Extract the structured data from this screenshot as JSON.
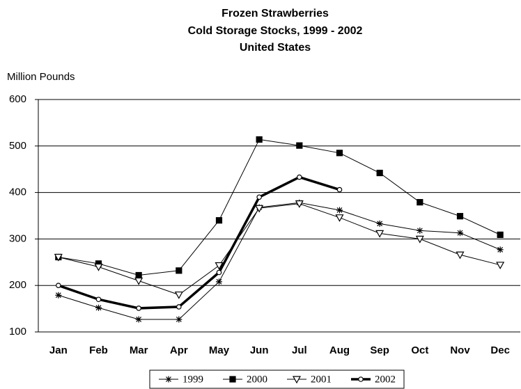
{
  "chart_data": {
    "type": "line",
    "title": [
      "Frozen Strawberries",
      "Cold Storage Stocks, 1999 - 2002",
      "United States"
    ],
    "y_label": "Million Pounds",
    "categories": [
      "Jan",
      "Feb",
      "Mar",
      "Apr",
      "May",
      "Jun",
      "Jul",
      "Aug",
      "Sep",
      "Oct",
      "Nov",
      "Dec"
    ],
    "series": [
      {
        "name": "1999",
        "color": "#000000",
        "marker": "asterisk",
        "line_width": 1,
        "values": [
          179,
          152,
          127,
          127,
          208,
          368,
          378,
          362,
          333,
          318,
          313,
          277
        ]
      },
      {
        "name": "2000",
        "color": "#000000",
        "marker": "square",
        "line_width": 1,
        "values": [
          261,
          247,
          222,
          232,
          340,
          514,
          501,
          485,
          442,
          379,
          349,
          309
        ]
      },
      {
        "name": "2001",
        "color": "#000000",
        "marker": "triangle-down",
        "line_width": 1,
        "values": [
          261,
          240,
          210,
          180,
          243,
          366,
          376,
          346,
          312,
          300,
          266,
          244
        ]
      },
      {
        "name": "2002",
        "color": "#000000",
        "marker": "circle",
        "line_width": 3.5,
        "values": [
          200,
          170,
          151,
          154,
          228,
          390,
          433,
          406,
          null,
          null,
          null,
          null
        ]
      }
    ],
    "ylim": [
      100,
      600
    ],
    "yticks": [
      100,
      200,
      300,
      400,
      500,
      600
    ],
    "grid": true,
    "legend": "bottom"
  }
}
